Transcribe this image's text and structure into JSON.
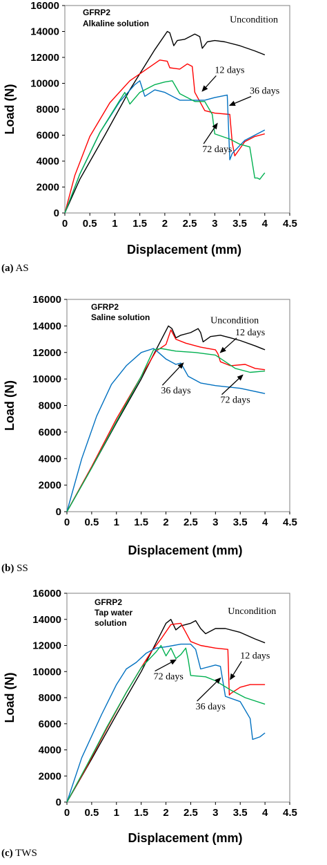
{
  "chart_data": [
    {
      "type": "line",
      "panel_id": "a",
      "caption_letter": "(a)",
      "caption_text": "AS",
      "title_lines": [
        "GFRP2",
        "Alkaline solution"
      ],
      "xlabel": "Displacement (mm)",
      "ylabel": "Load (N)",
      "xlim": [
        0,
        4.5
      ],
      "ylim": [
        0,
        16000
      ],
      "xticks": [
        0,
        0.5,
        1,
        1.5,
        2,
        2.5,
        3,
        3.5,
        4,
        4.5
      ],
      "xtick_labels": [
        "0",
        "0.5",
        "1",
        "1.5",
        "2",
        "2.5",
        "3",
        "3.5",
        "4",
        "4.5"
      ],
      "yticks": [
        0,
        2000,
        4000,
        6000,
        8000,
        10000,
        12000,
        14000,
        16000
      ],
      "ytick_labels": [
        "0",
        "2000",
        "4000",
        "6000",
        "8000",
        "10000",
        "12000",
        "14000",
        "16000"
      ],
      "series": [
        {
          "name": "Uncondition",
          "color": "#000000",
          "x": [
            0,
            0.3,
            0.8,
            1.3,
            1.8,
            2.05,
            2.1,
            2.18,
            2.25,
            2.4,
            2.6,
            2.7,
            2.75,
            2.85,
            3.0,
            3.2,
            3.5,
            3.8,
            4.0
          ],
          "y": [
            0,
            2600,
            6000,
            9500,
            12600,
            14000,
            13900,
            12900,
            13300,
            13400,
            13800,
            13600,
            12700,
            13200,
            13300,
            13200,
            12900,
            12500,
            12200
          ]
        },
        {
          "name": "12 days",
          "color": "#ff0000",
          "x": [
            0,
            0.2,
            0.5,
            0.9,
            1.3,
            1.6,
            1.9,
            2.05,
            2.1,
            2.3,
            2.45,
            2.55,
            2.6,
            2.8,
            3.0,
            3.3,
            3.35,
            3.4,
            3.6,
            3.8,
            4.0
          ],
          "y": [
            0,
            2900,
            5900,
            8500,
            10200,
            11000,
            11800,
            11700,
            11200,
            11100,
            11500,
            11300,
            9300,
            7900,
            7700,
            7600,
            5400,
            4400,
            5500,
            5900,
            6100
          ]
        },
        {
          "name": "36 days",
          "color": "#0070c0",
          "x": [
            0,
            0.3,
            0.7,
            1.1,
            1.4,
            1.5,
            1.6,
            1.8,
            2.0,
            2.3,
            2.5,
            2.8,
            3.0,
            3.25,
            3.3,
            3.35,
            3.4,
            3.6,
            3.8,
            4.0
          ],
          "y": [
            0,
            3000,
            6200,
            8600,
            9900,
            10200,
            9000,
            9500,
            9300,
            8700,
            8700,
            8700,
            8900,
            9100,
            4100,
            4600,
            4800,
            5600,
            6000,
            6400
          ]
        },
        {
          "name": "72 days",
          "color": "#00b050",
          "x": [
            0,
            0.3,
            0.7,
            1.1,
            1.2,
            1.3,
            1.5,
            1.8,
            2.0,
            2.15,
            2.3,
            2.6,
            2.8,
            2.95,
            3.0,
            3.3,
            3.5,
            3.7,
            3.8,
            3.85,
            3.9,
            4.0
          ],
          "y": [
            0,
            3000,
            6200,
            8700,
            9300,
            8400,
            9300,
            9900,
            10100,
            10200,
            9200,
            8600,
            8600,
            7600,
            6100,
            5700,
            5300,
            5100,
            2700,
            2700,
            2600,
            3100
          ]
        }
      ],
      "annotations": [
        {
          "text": "Uncondition",
          "x": 3.3,
          "y": 14700
        },
        {
          "text": "12 days",
          "x": 3.0,
          "y": 10800,
          "arrow_to": [
            2.75,
            9400
          ]
        },
        {
          "text": "36 days",
          "x": 3.7,
          "y": 9200,
          "arrow_to": [
            3.3,
            8300
          ]
        },
        {
          "text": "72 days",
          "x": 2.75,
          "y": 4700,
          "arrow_to": [
            3.05,
            6900
          ]
        }
      ]
    },
    {
      "type": "line",
      "panel_id": "b",
      "caption_letter": "(b)",
      "caption_text": "SS",
      "title_lines": [
        "GFRP2",
        "Saline solution"
      ],
      "xlabel": "Displacement (mm)",
      "ylabel": "Load (N)",
      "xlim": [
        0,
        4.5
      ],
      "ylim": [
        0,
        16000
      ],
      "xticks": [
        0,
        0.5,
        1,
        1.5,
        2,
        2.5,
        3,
        3.5,
        4,
        4.5
      ],
      "xtick_labels": [
        "0",
        "0.5",
        "1",
        "1.5",
        "2",
        "2.5",
        "3",
        "3.5",
        "4",
        "4.5"
      ],
      "yticks": [
        0,
        2000,
        4000,
        6000,
        8000,
        10000,
        12000,
        14000,
        16000
      ],
      "ytick_labels": [
        "0",
        "2000",
        "4000",
        "6000",
        "8000",
        "10000",
        "12000",
        "14000",
        "16000"
      ],
      "series": [
        {
          "name": "Uncondition",
          "color": "#000000",
          "x": [
            0,
            0.5,
            1.0,
            1.5,
            1.8,
            2.05,
            2.12,
            2.2,
            2.3,
            2.5,
            2.65,
            2.7,
            2.75,
            2.9,
            3.1,
            3.3,
            3.5,
            3.8,
            4.0
          ],
          "y": [
            0,
            3300,
            6700,
            10000,
            12200,
            14000,
            13800,
            13100,
            13300,
            13500,
            13800,
            13500,
            12800,
            13200,
            13300,
            13100,
            12900,
            12500,
            12200
          ]
        },
        {
          "name": "12 days",
          "color": "#ff0000",
          "x": [
            0,
            0.5,
            1.0,
            1.5,
            1.8,
            2.0,
            2.1,
            2.2,
            2.4,
            2.7,
            3.0,
            3.05,
            3.1,
            3.3,
            3.6,
            3.8,
            4.0
          ],
          "y": [
            0,
            3400,
            7000,
            10200,
            12100,
            12600,
            13700,
            13000,
            12700,
            12400,
            12200,
            11900,
            11300,
            11000,
            11100,
            10800,
            10700
          ]
        },
        {
          "name": "36 days",
          "color": "#0070c0",
          "x": [
            0,
            0.3,
            0.6,
            0.9,
            1.2,
            1.5,
            1.75,
            1.85,
            2.0,
            2.2,
            2.3,
            2.45,
            2.7,
            3.0,
            3.5,
            4.0
          ],
          "y": [
            0,
            4000,
            7200,
            9600,
            11000,
            12000,
            12300,
            12000,
            11500,
            11100,
            11200,
            10200,
            9700,
            9500,
            9300,
            8900
          ]
        },
        {
          "name": "72 days",
          "color": "#00b050",
          "x": [
            0,
            0.5,
            1.0,
            1.5,
            1.75,
            1.9,
            2.2,
            2.6,
            3.0,
            3.2,
            3.4,
            3.7,
            4.0
          ],
          "y": [
            0,
            3300,
            6800,
            10200,
            12200,
            12300,
            12100,
            12000,
            11800,
            11300,
            10800,
            10500,
            10600
          ]
        }
      ],
      "annotations": [
        {
          "text": "Uncondition",
          "x": 2.9,
          "y": 14200
        },
        {
          "text": "12 days",
          "x": 3.4,
          "y": 13300,
          "arrow_to": [
            3.1,
            12000
          ]
        },
        {
          "text": "36 days",
          "x": 1.9,
          "y": 8900,
          "arrow_to": [
            2.35,
            11200
          ]
        },
        {
          "text": "72 days",
          "x": 3.1,
          "y": 8200,
          "arrow_to": [
            3.55,
            10300
          ]
        }
      ]
    },
    {
      "type": "line",
      "panel_id": "c",
      "caption_letter": "(c)",
      "caption_text": "TWS",
      "title_lines": [
        "GFRP2",
        "Tap water",
        "solution"
      ],
      "xlabel": "Displacement (mm)",
      "ylabel": "Load (N)",
      "xlim": [
        0,
        4.5
      ],
      "ylim": [
        0,
        16000
      ],
      "xticks": [
        0,
        0.5,
        1,
        1.5,
        2,
        2.5,
        3,
        3.5,
        4,
        4.5
      ],
      "xtick_labels": [
        "0",
        "0.5",
        "1",
        "1.5",
        "2",
        "2.5",
        "3",
        "3.5",
        "4",
        "4.5"
      ],
      "yticks": [
        0,
        2000,
        4000,
        6000,
        8000,
        10000,
        12000,
        14000,
        16000
      ],
      "ytick_labels": [
        "0",
        "2000",
        "4000",
        "6000",
        "8000",
        "10000",
        "12000",
        "14000",
        "16000"
      ],
      "series": [
        {
          "name": "Uncondition",
          "color": "#000000",
          "x": [
            0,
            0.5,
            1.0,
            1.5,
            1.8,
            2.0,
            2.1,
            2.2,
            2.3,
            2.5,
            2.6,
            2.7,
            2.8,
            3.0,
            3.2,
            3.5,
            3.8,
            4.0
          ],
          "y": [
            0,
            3300,
            6700,
            10000,
            12200,
            13700,
            14000,
            13200,
            13500,
            13700,
            13900,
            13300,
            12900,
            13300,
            13300,
            13000,
            12500,
            12200
          ]
        },
        {
          "name": "12 days",
          "color": "#ff0000",
          "x": [
            0,
            0.4,
            0.8,
            1.2,
            1.5,
            1.7,
            1.9,
            2.1,
            2.3,
            2.4,
            2.5,
            2.7,
            3.0,
            3.25,
            3.28,
            3.3,
            3.5,
            3.7,
            4.0
          ],
          "y": [
            0,
            2700,
            5600,
            8400,
            10300,
            11500,
            12500,
            13600,
            13700,
            13000,
            12300,
            12000,
            11800,
            11700,
            8200,
            8300,
            8800,
            9000,
            9000
          ]
        },
        {
          "name": "36 days",
          "color": "#0070c0",
          "x": [
            0,
            0.3,
            0.7,
            1.0,
            1.2,
            1.4,
            1.6,
            1.8,
            2.0,
            2.3,
            2.5,
            2.6,
            2.7,
            3.0,
            3.1,
            3.2,
            3.5,
            3.7,
            3.75,
            3.9,
            4.0
          ],
          "y": [
            0,
            3400,
            6700,
            9000,
            10200,
            10700,
            11400,
            11800,
            11900,
            12100,
            12100,
            11700,
            10200,
            10500,
            10400,
            8100,
            7700,
            6400,
            4800,
            5000,
            5300
          ]
        },
        {
          "name": "72 days",
          "color": "#00b050",
          "x": [
            0,
            0.4,
            0.8,
            1.2,
            1.5,
            1.8,
            1.9,
            2.0,
            2.1,
            2.2,
            2.3,
            2.4,
            2.45,
            2.5,
            2.8,
            3.0,
            3.3,
            3.6,
            4.0
          ],
          "y": [
            0,
            2800,
            5700,
            8400,
            10300,
            11500,
            12000,
            11200,
            11800,
            11000,
            11300,
            11800,
            10900,
            9700,
            9600,
            9300,
            8600,
            8000,
            7500
          ]
        }
      ],
      "annotations": [
        {
          "text": "Uncondition",
          "x": 3.25,
          "y": 14400
        },
        {
          "text": "12 days",
          "x": 3.5,
          "y": 11000,
          "arrow_to": [
            3.3,
            9400
          ]
        },
        {
          "text": "72 days",
          "x": 1.75,
          "y": 9400,
          "arrow_to": [
            2.2,
            10900
          ]
        },
        {
          "text": "36 days",
          "x": 2.6,
          "y": 7100,
          "arrow_to": [
            3.1,
            9500
          ]
        }
      ]
    }
  ]
}
